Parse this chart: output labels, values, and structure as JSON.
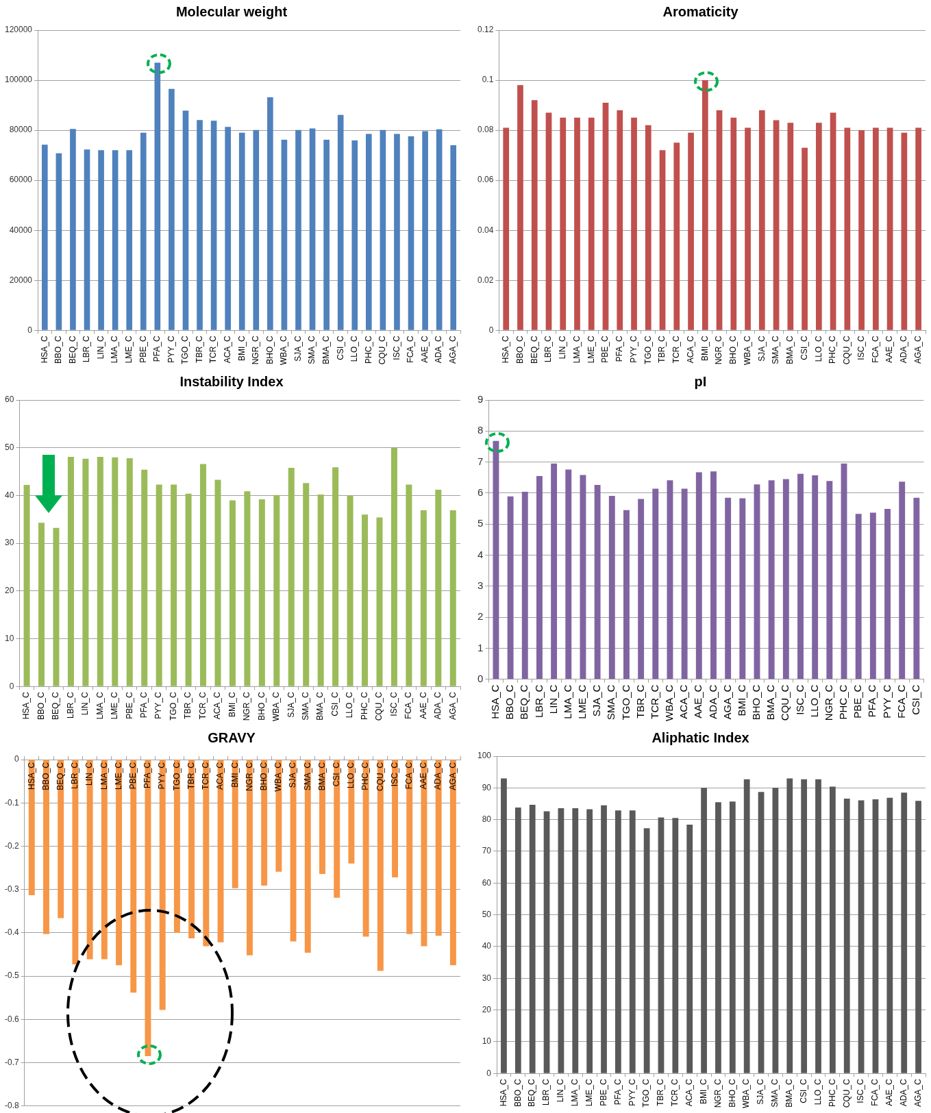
{
  "chart_data": [
    {
      "type": "bar",
      "title": "Molecular weight",
      "categories": [
        "HSA_C",
        "BBO_C",
        "BEQ_C",
        "LBR_C",
        "LIN_C",
        "LMA_C",
        "LME_C",
        "PBE_C",
        "PFA_C",
        "PYY_C",
        "TGO_C",
        "TBR_C",
        "TCR_C",
        "ACA_C",
        "BMI_C",
        "NGR_C",
        "BHO_C",
        "WBA_C",
        "SJA_C",
        "SMA_C",
        "BMA_C",
        "CSI_C",
        "LLO_C",
        "PHC_C",
        "CQU_C",
        "ISC_C",
        "FCA_C",
        "AAE_C",
        "ADA_C",
        "AGA_C"
      ],
      "values": [
        74200,
        70800,
        80500,
        72300,
        72000,
        72000,
        72000,
        79000,
        107000,
        96500,
        87800,
        84100,
        83800,
        81300,
        79000,
        80100,
        93200,
        76200,
        80100,
        80700,
        76200,
        86100,
        75900,
        78500,
        80100,
        78500,
        77600,
        79600,
        80400,
        74000
      ],
      "color": "#4f81bd",
      "ylim": [
        0,
        120000
      ],
      "yticks": [
        0,
        20000,
        40000,
        60000,
        80000,
        100000,
        120000
      ],
      "grid": "y"
    },
    {
      "type": "bar",
      "title": "Aromaticity",
      "categories": [
        "HSA_C",
        "BBO_C",
        "BEQ_C",
        "LBR_C",
        "LIN_C",
        "LMA_C",
        "LME_C",
        "PBE_C",
        "PFA_C",
        "PYY_C",
        "TGO_C",
        "TBR_C",
        "TCR_C",
        "ACA_C",
        "BMI_C",
        "NGR_C",
        "BHO_C",
        "WBA_C",
        "SJA_C",
        "SMA_C",
        "BMA_C",
        "CSI_C",
        "LLO_C",
        "PHC_C",
        "CQU_C",
        "ISC_C",
        "FCA_C",
        "AAE_C",
        "ADA_C",
        "AGA_C"
      ],
      "values": [
        0.081,
        0.098,
        0.092,
        0.087,
        0.085,
        0.085,
        0.085,
        0.091,
        0.088,
        0.085,
        0.082,
        0.072,
        0.075,
        0.079,
        0.1,
        0.088,
        0.085,
        0.081,
        0.088,
        0.084,
        0.083,
        0.073,
        0.083,
        0.087,
        0.081,
        0.08,
        0.081,
        0.081,
        0.079,
        0.081
      ],
      "color": "#c0504d",
      "ylim": [
        0,
        0.12
      ],
      "yticks": [
        0,
        0.02,
        0.04,
        0.06,
        0.08,
        0.1,
        0.12
      ],
      "grid": "y"
    },
    {
      "type": "bar",
      "title": "Instability Index",
      "categories": [
        "HSA_C",
        "BBO_C",
        "BEQ_C",
        "LBR_C",
        "LIN_C",
        "LMA_C",
        "LME_C",
        "PBE_C",
        "PFA_C",
        "PYY_C",
        "TGO_C",
        "TBR_C",
        "TCR_C",
        "ACA_C",
        "BMI_C",
        "NGR_C",
        "BHO_C",
        "WBA_C",
        "SJA_C",
        "SMA_C",
        "BMA_C",
        "CSI_C",
        "LLO_C",
        "PHC_C",
        "CQU_C",
        "ISC_C",
        "FCA_C",
        "AAE_C",
        "ADA_C",
        "AGA_C"
      ],
      "values": [
        42.2,
        34.3,
        33.2,
        48.1,
        47.7,
        48.1,
        48.0,
        47.8,
        45.4,
        42.3,
        42.3,
        40.4,
        46.6,
        43.3,
        39.0,
        40.9,
        39.2,
        40.1,
        45.8,
        42.6,
        40.2,
        45.9,
        40.0,
        36.0,
        35.4,
        50.0,
        42.3,
        36.9,
        41.2,
        36.9
      ],
      "color": "#9bbb59",
      "ylim": [
        0,
        60
      ],
      "yticks": [
        0,
        10,
        20,
        30,
        40,
        50,
        60
      ],
      "grid": "y"
    },
    {
      "type": "bar",
      "title": "pI",
      "categories": [
        "HSA_C",
        "BBO_C",
        "BEQ_C",
        "LBR_C",
        "LIN_C",
        "LMA_C",
        "LME_C",
        "SJA_C",
        "SMA_C",
        "TGO_C",
        "TBR_C",
        "TCR_C",
        "WBA_C",
        "ACA_C",
        "AAE_C",
        "ADA_C",
        "AGA_C",
        "BMI_C",
        "BHO_C",
        "BMA_C",
        "CQU_C",
        "ISC_C",
        "LLO_C",
        "NGR_C",
        "PHC_C",
        "PBE_C",
        "PFA_C",
        "PYY_C",
        "FCA_C",
        "CSI_C"
      ],
      "values": [
        7.68,
        5.89,
        6.04,
        6.55,
        6.95,
        6.76,
        6.58,
        6.26,
        5.91,
        5.45,
        5.81,
        6.14,
        6.41,
        6.14,
        6.67,
        6.7,
        5.85,
        5.83,
        6.28,
        6.41,
        6.45,
        6.62,
        6.57,
        6.39,
        6.95,
        5.33,
        5.37,
        5.49,
        6.37,
        5.85
      ],
      "color": "#8064a2",
      "ylim": [
        0,
        9
      ],
      "yticks": [
        0,
        1,
        2,
        3,
        4,
        5,
        6,
        7,
        8,
        9
      ],
      "grid": "y"
    },
    {
      "type": "bar",
      "title": "GRAVY",
      "categories": [
        "HSA_C",
        "BBO_C",
        "BEQ_C",
        "LBR_C",
        "LIN_C",
        "LMA_C",
        "LME_C",
        "PBE_C",
        "PFA_C",
        "PYY_C",
        "TGO_C",
        "TBR_C",
        "TCR_C",
        "ACA_C",
        "BMI_C",
        "NGR_C",
        "BHO_C",
        "WBA_C",
        "SJA_C",
        "SMA_C",
        "BMA_C",
        "CSI_C",
        "LLO_C",
        "PHC_C",
        "CQU_C",
        "ISC_C",
        "FCA_C",
        "AAE_C",
        "ADA_C",
        "AGA_C"
      ],
      "values": [
        -0.313,
        -0.403,
        -0.366,
        -0.473,
        -0.461,
        -0.461,
        -0.475,
        -0.538,
        -0.685,
        -0.578,
        -0.4,
        -0.413,
        -0.431,
        -0.422,
        -0.297,
        -0.452,
        -0.291,
        -0.259,
        -0.42,
        -0.446,
        -0.264,
        -0.319,
        -0.24,
        -0.409,
        -0.488,
        -0.272,
        -0.403,
        -0.431,
        -0.407,
        -0.475
      ],
      "color": "#f79646",
      "ylim": [
        -0.8,
        0
      ],
      "yticks": [
        -0.8,
        -0.7,
        -0.6,
        -0.5,
        -0.4,
        -0.3,
        -0.2,
        -0.1,
        0
      ],
      "grid": "y"
    },
    {
      "type": "bar",
      "title": "Aliphatic Index",
      "categories": [
        "HSA_C",
        "BBO_C",
        "BEQ_C",
        "LBR_C",
        "LIN_C",
        "LMA_C",
        "LME_C",
        "PBE_C",
        "PFA_C",
        "PYY_C",
        "TGO_C",
        "TBR_C",
        "TCR_C",
        "ACA_C",
        "BMI_C",
        "NGR_C",
        "BHO_C",
        "WBA_C",
        "SJA_C",
        "SMA_C",
        "BMA_C",
        "CSI_C",
        "LLO_C",
        "PHC_C",
        "CQU_C",
        "ISC_C",
        "FCA_C",
        "AAE_C",
        "ADA_C",
        "AGA_C"
      ],
      "values": [
        93,
        83.8,
        84.7,
        82.6,
        83.6,
        83.6,
        83.3,
        84.5,
        82.9,
        82.9,
        77.3,
        80.7,
        80.5,
        78.4,
        90,
        85.5,
        85.7,
        92.7,
        88.7,
        90,
        93,
        92.7,
        92.7,
        90.4,
        86.6,
        86.1,
        86.4,
        86.9,
        88.5,
        85.9
      ],
      "color": "#595959",
      "ylim": [
        0,
        100
      ],
      "yticks": [
        0,
        10,
        20,
        30,
        40,
        50,
        60,
        70,
        80,
        90,
        100
      ],
      "grid": "y"
    }
  ]
}
